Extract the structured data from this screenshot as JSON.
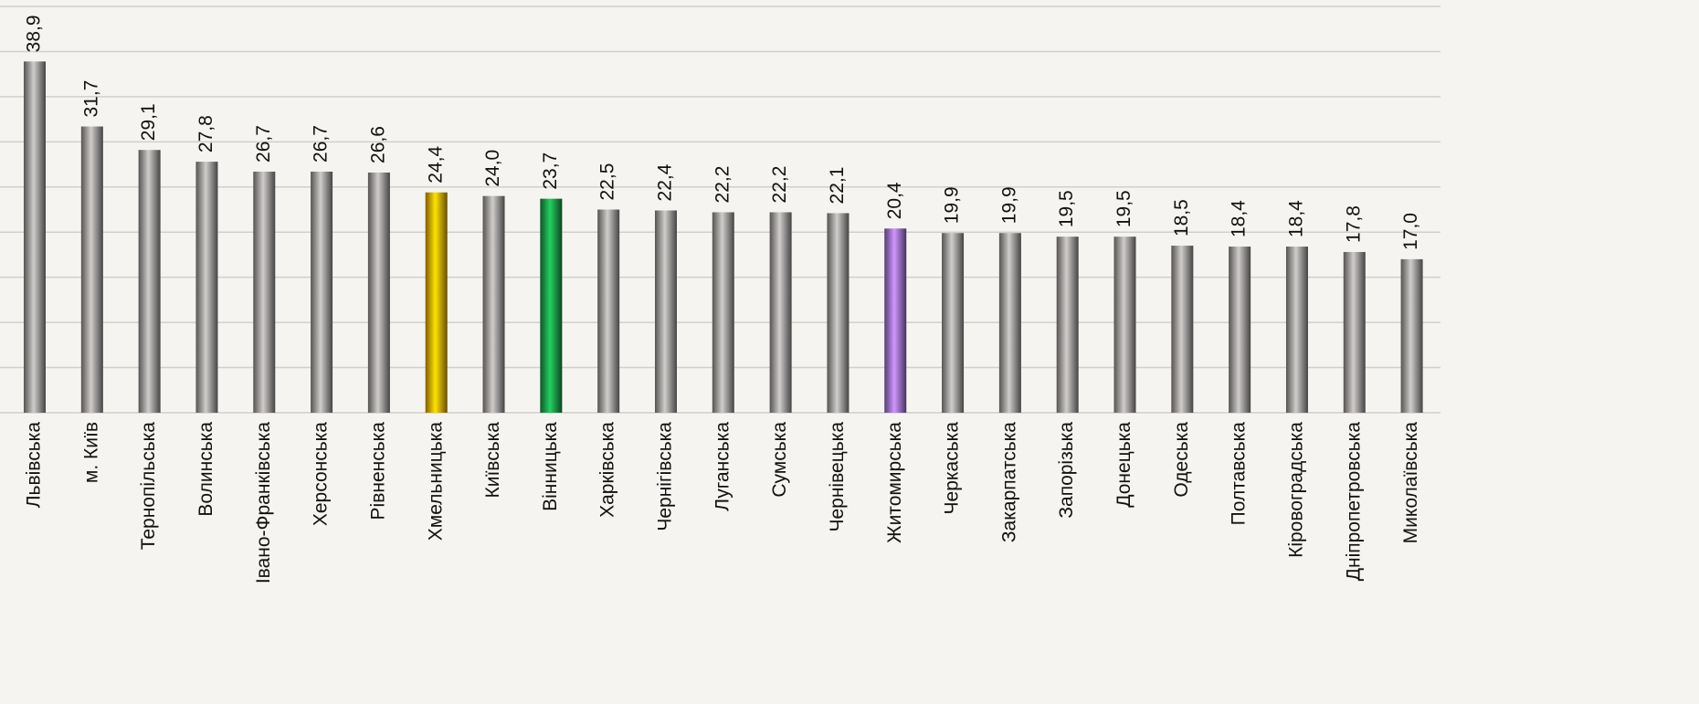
{
  "chart_data": {
    "type": "bar",
    "categories": [
      "Львівська",
      "м. Київ",
      "Тернопільська",
      "Волинська",
      "Івано-Франківська",
      "Херсонська",
      "Рівненська",
      "Хмельницька",
      "Київська",
      "Вінницька",
      "Харківська",
      "Чернігівська",
      "Луганська",
      "Сумська",
      "Чернівецька",
      "Житомирська",
      "Черкаська",
      "Закарпатська",
      "Запорізька",
      "Донецька",
      "Одеська",
      "Полтавська",
      "Кіровоградська",
      "Дніпропетровська",
      "Миколаївська"
    ],
    "values": [
      38.9,
      31.7,
      29.1,
      27.8,
      26.7,
      26.7,
      26.6,
      24.4,
      24.0,
      23.7,
      22.5,
      22.4,
      22.2,
      22.2,
      22.1,
      20.4,
      19.9,
      19.9,
      19.5,
      19.5,
      18.5,
      18.4,
      18.4,
      17.8,
      17.0
    ],
    "value_labels": [
      "38,9",
      "31,7",
      "29,1",
      "27,8",
      "26,7",
      "26,7",
      "26,6",
      "24,4",
      "24,0",
      "23,7",
      "22,5",
      "22,4",
      "22,2",
      "22,2",
      "22,1",
      "20,4",
      "19,9",
      "19,9",
      "19,5",
      "19,5",
      "18,5",
      "18,4",
      "18,4",
      "17,8",
      "17,0"
    ],
    "colors": [
      "#9a9896",
      "#9a9896",
      "#9a9896",
      "#9a9896",
      "#9a9896",
      "#9a9896",
      "#9a9896",
      "#e8a800",
      "#9a9896",
      "#1a9a48",
      "#9a9896",
      "#9a9896",
      "#9a9896",
      "#9a9896",
      "#9a9896",
      "#9a6fd0",
      "#9a9896",
      "#9a9896",
      "#9a9896",
      "#9a9896",
      "#9a9896",
      "#9a9896",
      "#9a9896",
      "#9a9896",
      "#9a9896"
    ],
    "ylim": [
      0,
      45
    ],
    "yticks": [
      0,
      5,
      10,
      15,
      20,
      25,
      30,
      35,
      40,
      45
    ],
    "grid": true
  }
}
